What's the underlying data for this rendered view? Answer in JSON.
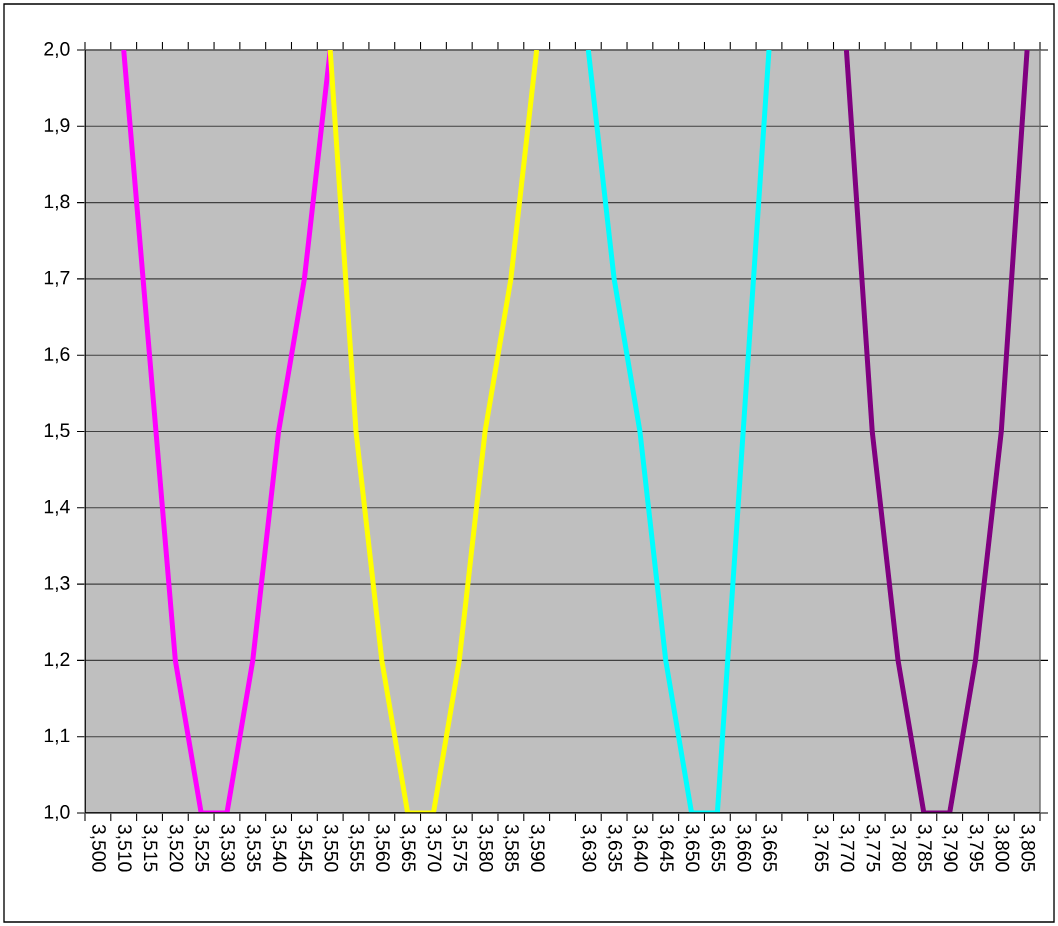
{
  "chart_data": {
    "type": "line",
    "categories": [
      "3,500",
      "3,510",
      "3,515",
      "3,520",
      "3,525",
      "3,530",
      "3,535",
      "3,540",
      "3,545",
      "3,550",
      "3,555",
      "3,560",
      "3,565",
      "3,570",
      "3,575",
      "3,580",
      "3,585",
      "3,590",
      null,
      "3,630",
      "3,635",
      "3,640",
      "3,645",
      "3,650",
      "3,655",
      "3,660",
      "3,665",
      null,
      "3,765",
      "3,770",
      "3,775",
      "3,780",
      "3,785",
      "3,790",
      "3,795",
      "3,800",
      "3,805"
    ],
    "series": [
      {
        "color": "#ff00ff",
        "values": [
          null,
          2.0,
          1.6,
          1.2,
          1.0,
          1.0,
          1.2,
          1.5,
          1.7,
          2.0,
          null,
          null,
          null,
          null,
          null,
          null,
          null,
          null,
          null,
          null,
          null,
          null,
          null,
          null,
          null,
          null,
          null,
          null,
          null,
          null,
          null,
          null,
          null,
          null,
          null,
          null,
          null
        ]
      },
      {
        "color": "#ffff00",
        "values": [
          null,
          null,
          null,
          null,
          null,
          null,
          null,
          null,
          null,
          2.0,
          1.5,
          1.2,
          1.0,
          1.0,
          1.2,
          1.5,
          1.7,
          2.0,
          null,
          null,
          null,
          null,
          null,
          null,
          null,
          null,
          null,
          null,
          null,
          null,
          null,
          null,
          null,
          null,
          null,
          null,
          null
        ]
      },
      {
        "color": "#00ffff",
        "values": [
          null,
          null,
          null,
          null,
          null,
          null,
          null,
          null,
          null,
          null,
          null,
          null,
          null,
          null,
          null,
          null,
          null,
          null,
          null,
          2.0,
          1.7,
          1.5,
          1.2,
          1.0,
          1.0,
          1.5,
          2.0,
          null,
          null,
          null,
          null,
          null,
          null,
          null,
          null,
          null,
          null
        ]
      },
      {
        "color": "#800080",
        "values": [
          null,
          null,
          null,
          null,
          null,
          null,
          null,
          null,
          null,
          null,
          null,
          null,
          null,
          null,
          null,
          null,
          null,
          null,
          null,
          null,
          null,
          null,
          null,
          null,
          null,
          null,
          null,
          null,
          null,
          2.0,
          1.5,
          1.2,
          1.0,
          1.0,
          1.2,
          1.5,
          2.0
        ]
      }
    ],
    "ylim": [
      1.0,
      2.0
    ],
    "yticks": [
      {
        "value": 1.0,
        "label": "1,0"
      },
      {
        "value": 1.1,
        "label": "1,1"
      },
      {
        "value": 1.2,
        "label": "1,2"
      },
      {
        "value": 1.3,
        "label": "1,3"
      },
      {
        "value": 1.4,
        "label": "1,4"
      },
      {
        "value": 1.5,
        "label": "1,5"
      },
      {
        "value": 1.6,
        "label": "1,6"
      },
      {
        "value": 1.7,
        "label": "1,7"
      },
      {
        "value": 1.8,
        "label": "1,8"
      },
      {
        "value": 1.9,
        "label": "1,9"
      },
      {
        "value": 2.0,
        "label": "2,0"
      }
    ],
    "grid": "y",
    "marker": "none",
    "line_style": "solid"
  }
}
